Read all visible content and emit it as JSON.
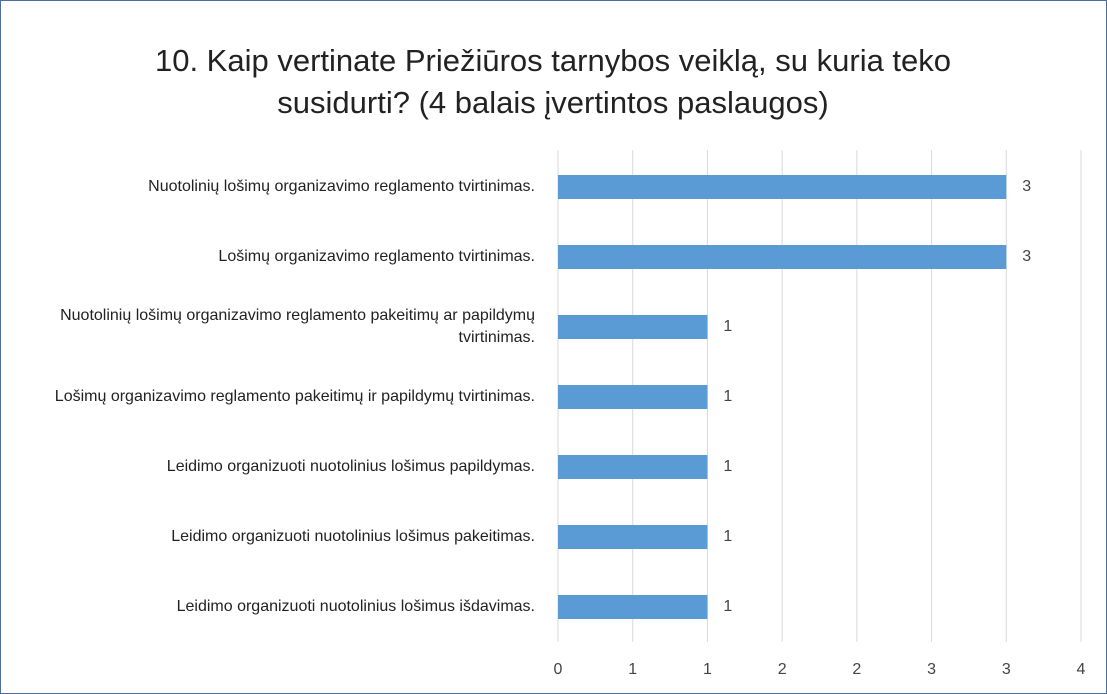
{
  "chart_data": {
    "type": "bar",
    "orientation": "horizontal",
    "title": "10. Kaip vertinate Priežiūros tarnybos veiklą, su kuria teko susidurti? (4 balais įvertintos paslaugos)",
    "categories": [
      "Nuotolinių lošimų organizavimo reglamento tvirtinimas.",
      "Lošimų organizavimo reglamento tvirtinimas.",
      "Nuotolinių lošimų organizavimo reglamento pakeitimų ar papildymų tvirtinimas.",
      "Lošimų organizavimo reglamento pakeitimų ir papildymų tvirtinimas.",
      "Leidimo organizuoti nuotolinius lošimus papildymas.",
      "Leidimo organizuoti nuotolinius lošimus pakeitimas.",
      "Leidimo organizuoti nuotolinius lošimus išdavimas."
    ],
    "values": [
      3,
      3,
      1,
      1,
      1,
      1,
      1
    ],
    "color": "#5b9bd5",
    "xlim": [
      0,
      3.5
    ],
    "xticks": [
      0,
      {
        "value": 0.5,
        "label": "1"
      },
      1,
      {
        "value": 1.5,
        "label": "2"
      },
      2,
      {
        "value": 2.5,
        "label": "3"
      },
      3,
      {
        "value": 3.5,
        "label": "4"
      }
    ],
    "grid": true
  }
}
